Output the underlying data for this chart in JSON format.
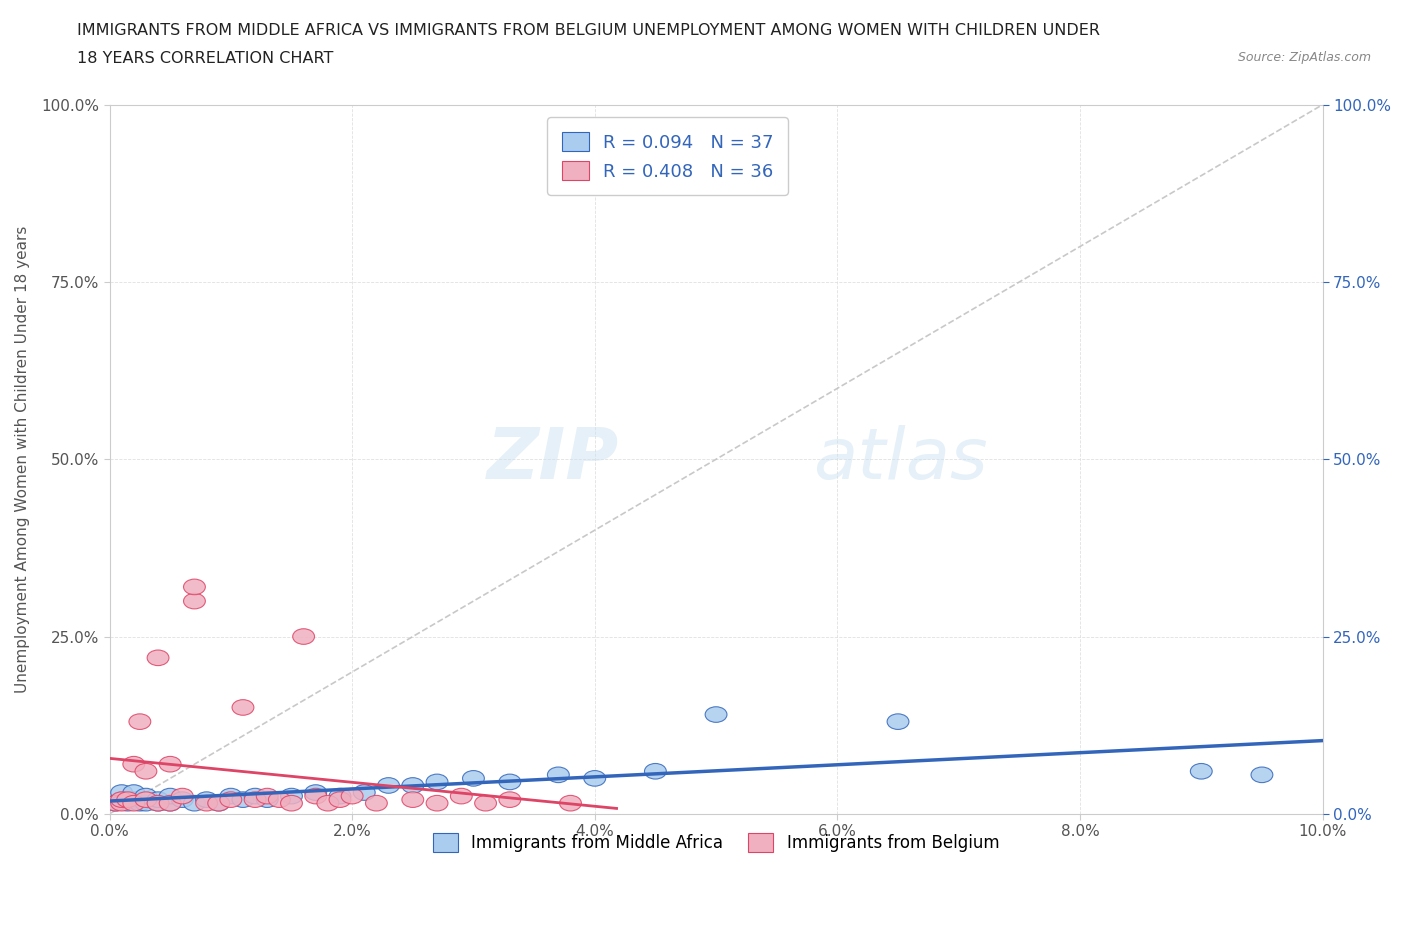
{
  "title_line1": "IMMIGRANTS FROM MIDDLE AFRICA VS IMMIGRANTS FROM BELGIUM UNEMPLOYMENT AMONG WOMEN WITH CHILDREN UNDER",
  "title_line2": "18 YEARS CORRELATION CHART",
  "source": "Source: ZipAtlas.com",
  "ylabel": "Unemployment Among Women with Children Under 18 years",
  "xlim": [
    0.0,
    0.1
  ],
  "ylim": [
    0.0,
    1.0
  ],
  "xticks": [
    0.0,
    0.02,
    0.04,
    0.06,
    0.08,
    0.1
  ],
  "yticks": [
    0.0,
    0.25,
    0.5,
    0.75,
    1.0
  ],
  "xticklabels": [
    "0.0%",
    "2.0%",
    "4.0%",
    "6.0%",
    "8.0%",
    "10.0%"
  ],
  "yticklabels": [
    "0.0%",
    "25.0%",
    "50.0%",
    "75.0%",
    "100.0%"
  ],
  "color_blue": "#aaccee",
  "color_pink": "#f0b0c0",
  "color_blue_dark": "#3366bb",
  "color_pink_dark": "#dd4466",
  "R_blue": 0.094,
  "N_blue": 37,
  "R_pink": 0.408,
  "N_pink": 36,
  "legend_label_blue": "Immigrants from Middle Africa",
  "legend_label_pink": "Immigrants from Belgium",
  "watermark_1": "ZIP",
  "watermark_2": "atlas",
  "diag_line_color": "#bbbbbb",
  "blue_trend_slope": 0.005,
  "blue_trend_intercept": 0.015,
  "pink_trend_slope": 18.0,
  "pink_trend_intercept": 0.02,
  "blue_points_x": [
    0.0005,
    0.001,
    0.001,
    0.0015,
    0.002,
    0.002,
    0.0025,
    0.003,
    0.003,
    0.004,
    0.004,
    0.005,
    0.005,
    0.006,
    0.007,
    0.008,
    0.009,
    0.01,
    0.011,
    0.012,
    0.013,
    0.015,
    0.017,
    0.019,
    0.021,
    0.023,
    0.025,
    0.027,
    0.03,
    0.033,
    0.037,
    0.04,
    0.045,
    0.05,
    0.065,
    0.09,
    0.095
  ],
  "blue_points_y": [
    0.015,
    0.02,
    0.03,
    0.015,
    0.02,
    0.03,
    0.015,
    0.015,
    0.025,
    0.015,
    0.02,
    0.015,
    0.025,
    0.02,
    0.015,
    0.02,
    0.015,
    0.025,
    0.02,
    0.025,
    0.02,
    0.025,
    0.03,
    0.025,
    0.03,
    0.04,
    0.04,
    0.045,
    0.05,
    0.045,
    0.055,
    0.05,
    0.06,
    0.14,
    0.13,
    0.06,
    0.055
  ],
  "pink_points_x": [
    0.0005,
    0.001,
    0.001,
    0.0015,
    0.002,
    0.002,
    0.0025,
    0.003,
    0.003,
    0.004,
    0.004,
    0.005,
    0.005,
    0.006,
    0.007,
    0.007,
    0.008,
    0.009,
    0.01,
    0.011,
    0.012,
    0.013,
    0.014,
    0.015,
    0.016,
    0.017,
    0.018,
    0.019,
    0.02,
    0.022,
    0.025,
    0.027,
    0.029,
    0.031,
    0.033,
    0.038
  ],
  "pink_points_y": [
    0.015,
    0.015,
    0.02,
    0.02,
    0.015,
    0.07,
    0.13,
    0.02,
    0.06,
    0.015,
    0.22,
    0.015,
    0.07,
    0.025,
    0.3,
    0.32,
    0.015,
    0.015,
    0.02,
    0.15,
    0.02,
    0.025,
    0.02,
    0.015,
    0.25,
    0.025,
    0.015,
    0.02,
    0.025,
    0.015,
    0.02,
    0.015,
    0.025,
    0.015,
    0.02,
    0.015
  ]
}
